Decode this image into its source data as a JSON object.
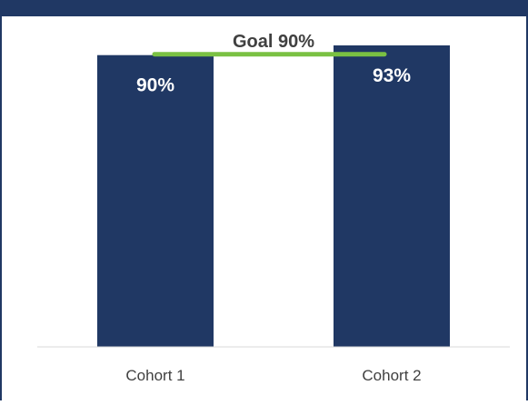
{
  "chart_data": {
    "type": "bar",
    "categories": [
      "Cohort 1",
      "Cohort 2"
    ],
    "values": [
      90,
      93
    ],
    "data_labels": [
      "90%",
      "93%"
    ],
    "goal": {
      "label": "Goal 90%",
      "value": 90,
      "color": "#7ac143"
    },
    "bar_color": "#203864",
    "frame_color": "#203864",
    "axis_color": "#d9d9d9",
    "ylim": [
      0,
      100
    ],
    "grid": false,
    "title": "",
    "xlabel": "",
    "ylabel": ""
  }
}
